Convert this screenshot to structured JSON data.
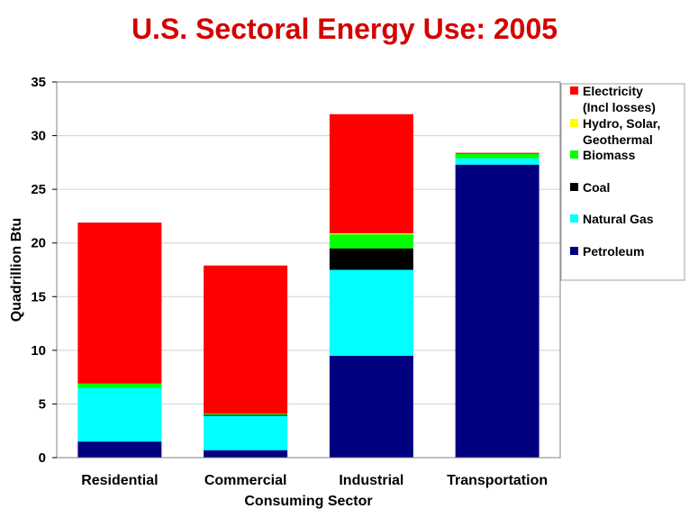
{
  "colors": {
    "title": "#d40000",
    "plot_border": "#808080",
    "grid": "#d0d0d0"
  },
  "chart_data": {
    "type": "bar",
    "stacked": true,
    "title": "U.S. Sectoral Energy Use:  2005",
    "xlabel": "Consuming Sector",
    "ylabel": "Quadrillion Btu",
    "ylim": [
      0,
      35
    ],
    "yticks": [
      0,
      5,
      10,
      15,
      20,
      25,
      30,
      35
    ],
    "grid": true,
    "legend_position": "right",
    "categories": [
      "Residential",
      "Commercial",
      "Industrial",
      "Transportation"
    ],
    "series": [
      {
        "name": "Petroleum",
        "color": "#000080",
        "values": [
          1.5,
          0.7,
          9.5,
          27.3
        ]
      },
      {
        "name": "Natural Gas",
        "color": "#00ffff",
        "values": [
          5.0,
          3.2,
          8.0,
          0.6
        ]
      },
      {
        "name": "Coal",
        "color": "#000000",
        "values": [
          0.0,
          0.1,
          2.0,
          0.0
        ]
      },
      {
        "name": "Biomass",
        "color": "#00ff00",
        "values": [
          0.4,
          0.1,
          1.3,
          0.4
        ]
      },
      {
        "name": "Hydro, Solar, Geothermal",
        "color": "#ffff00",
        "values": [
          0.0,
          0.0,
          0.1,
          0.0
        ]
      },
      {
        "name": "Electricity (Incl losses)",
        "color": "#ff0000",
        "values": [
          15.0,
          13.8,
          11.1,
          0.1
        ]
      }
    ],
    "legend": [
      {
        "lines": [
          "Electricity",
          "(Incl losses)"
        ],
        "color": "#ff0000"
      },
      {
        "lines": [
          "Hydro, Solar,",
          "Geothermal"
        ],
        "color": "#ffff00"
      },
      {
        "lines": [
          "Biomass"
        ],
        "color": "#00ff00"
      },
      {
        "lines": [
          "Coal"
        ],
        "color": "#000000"
      },
      {
        "lines": [
          "Natural Gas"
        ],
        "color": "#00ffff"
      },
      {
        "lines": [
          "Petroleum"
        ],
        "color": "#000080"
      }
    ]
  }
}
